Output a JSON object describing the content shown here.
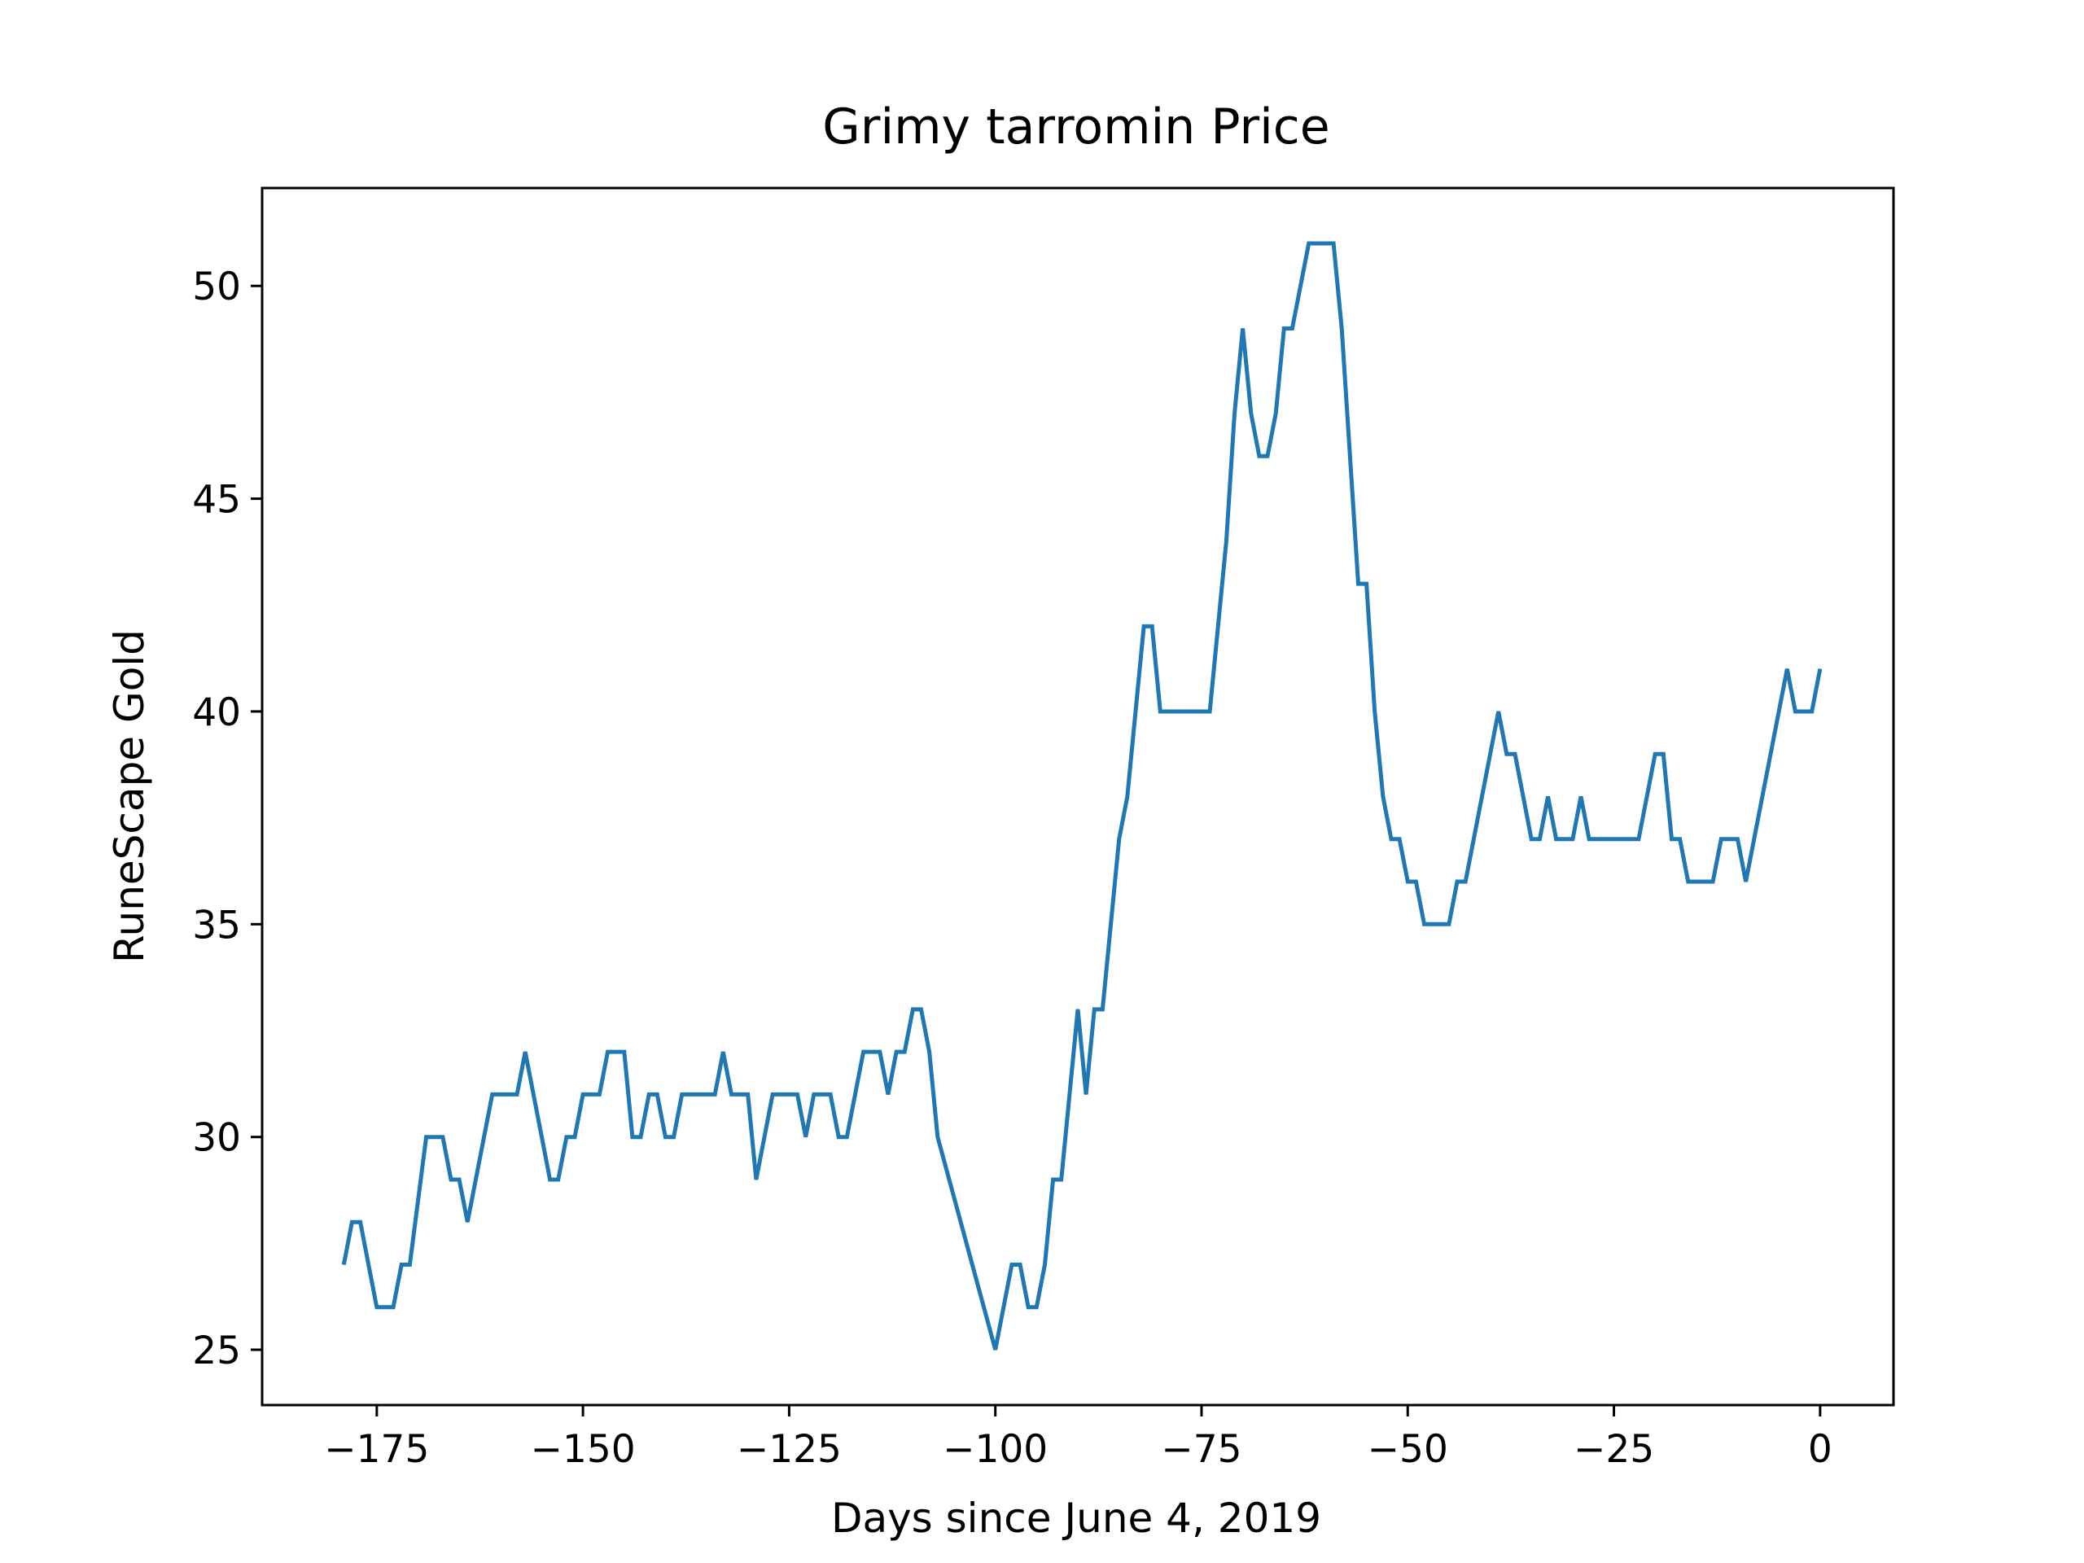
{
  "chart_data": {
    "type": "line",
    "title": "Grimy tarromin Price",
    "xlabel": "Days since June 4, 2019",
    "ylabel": "RuneScape Gold",
    "xlim": [
      -188.9,
      8.9
    ],
    "ylim": [
      23.7,
      52.3
    ],
    "xticks": [
      {
        "value": -175,
        "label": "−175"
      },
      {
        "value": -150,
        "label": "−150"
      },
      {
        "value": -125,
        "label": "−125"
      },
      {
        "value": -100,
        "label": "−100"
      },
      {
        "value": -75,
        "label": "−75"
      },
      {
        "value": -50,
        "label": "−50"
      },
      {
        "value": -25,
        "label": "−25"
      },
      {
        "value": 0,
        "label": "0"
      }
    ],
    "yticks": [
      {
        "value": 25,
        "label": "25"
      },
      {
        "value": 30,
        "label": "30"
      },
      {
        "value": 35,
        "label": "35"
      },
      {
        "value": 40,
        "label": "40"
      },
      {
        "value": 45,
        "label": "45"
      },
      {
        "value": 50,
        "label": "50"
      }
    ],
    "grid": false,
    "legend": "none",
    "series": [
      {
        "color": "#1f77b4",
        "points": [
          [
            -179,
            27
          ],
          [
            -178,
            28
          ],
          [
            -177,
            28
          ],
          [
            -175,
            26
          ],
          [
            -174,
            26
          ],
          [
            -173,
            26
          ],
          [
            -172,
            27
          ],
          [
            -171,
            27
          ],
          [
            -169,
            30
          ],
          [
            -168,
            30
          ],
          [
            -167,
            30
          ],
          [
            -166,
            29
          ],
          [
            -165,
            29
          ],
          [
            -164,
            28
          ],
          [
            -161,
            31
          ],
          [
            -160,
            31
          ],
          [
            -159,
            31
          ],
          [
            -158,
            31
          ],
          [
            -157,
            32
          ],
          [
            -154,
            29
          ],
          [
            -153,
            29
          ],
          [
            -152,
            30
          ],
          [
            -151,
            30
          ],
          [
            -150,
            31
          ],
          [
            -149,
            31
          ],
          [
            -148,
            31
          ],
          [
            -147,
            32
          ],
          [
            -146,
            32
          ],
          [
            -145,
            32
          ],
          [
            -144,
            30
          ],
          [
            -143,
            30
          ],
          [
            -142,
            31
          ],
          [
            -141,
            31
          ],
          [
            -140,
            30
          ],
          [
            -139,
            30
          ],
          [
            -138,
            31
          ],
          [
            -134,
            31
          ],
          [
            -133,
            32
          ],
          [
            -132,
            31
          ],
          [
            -131,
            31
          ],
          [
            -130,
            31
          ],
          [
            -129,
            29
          ],
          [
            -127,
            31
          ],
          [
            -126,
            31
          ],
          [
            -124,
            31
          ],
          [
            -123,
            30
          ],
          [
            -122,
            31
          ],
          [
            -121,
            31
          ],
          [
            -120,
            31
          ],
          [
            -119,
            30
          ],
          [
            -118,
            30
          ],
          [
            -116,
            32
          ],
          [
            -115,
            32
          ],
          [
            -114,
            32
          ],
          [
            -113,
            31
          ],
          [
            -112,
            32
          ],
          [
            -111,
            32
          ],
          [
            -110,
            33
          ],
          [
            -109,
            33
          ],
          [
            -108,
            32
          ],
          [
            -107,
            30
          ],
          [
            -100,
            25
          ],
          [
            -98,
            27
          ],
          [
            -97,
            27
          ],
          [
            -96,
            26
          ],
          [
            -95,
            26
          ],
          [
            -94,
            27
          ],
          [
            -93,
            29
          ],
          [
            -92,
            29
          ],
          [
            -90,
            33
          ],
          [
            -89,
            31
          ],
          [
            -88,
            33
          ],
          [
            -87,
            33
          ],
          [
            -85,
            37
          ],
          [
            -84,
            38
          ],
          [
            -82,
            42
          ],
          [
            -81,
            42
          ],
          [
            -80,
            40
          ],
          [
            -74,
            40
          ],
          [
            -72,
            44
          ],
          [
            -71,
            47
          ],
          [
            -70,
            49
          ],
          [
            -69,
            47
          ],
          [
            -68,
            46
          ],
          [
            -67,
            46
          ],
          [
            -66,
            47
          ],
          [
            -65,
            49
          ],
          [
            -64,
            49
          ],
          [
            -62,
            51
          ],
          [
            -59,
            51
          ],
          [
            -58,
            49
          ],
          [
            -56,
            43
          ],
          [
            -55,
            43
          ],
          [
            -54,
            40
          ],
          [
            -53,
            38
          ],
          [
            -52,
            37
          ],
          [
            -51,
            37
          ],
          [
            -50,
            36
          ],
          [
            -49,
            36
          ],
          [
            -48,
            35
          ],
          [
            -45,
            35
          ],
          [
            -44,
            36
          ],
          [
            -43,
            36
          ],
          [
            -39,
            40
          ],
          [
            -38,
            39
          ],
          [
            -37,
            39
          ],
          [
            -35,
            37
          ],
          [
            -34,
            37
          ],
          [
            -33,
            38
          ],
          [
            -32,
            37
          ],
          [
            -30,
            37
          ],
          [
            -29,
            38
          ],
          [
            -28,
            37
          ],
          [
            -22,
            37
          ],
          [
            -20,
            39
          ],
          [
            -19,
            39
          ],
          [
            -18,
            37
          ],
          [
            -17,
            37
          ],
          [
            -16,
            36
          ],
          [
            -13,
            36
          ],
          [
            -12,
            37
          ],
          [
            -10,
            37
          ],
          [
            -9,
            36
          ],
          [
            -4,
            41
          ],
          [
            -3,
            40
          ],
          [
            -1,
            40
          ],
          [
            0,
            41
          ]
        ]
      }
    ]
  }
}
